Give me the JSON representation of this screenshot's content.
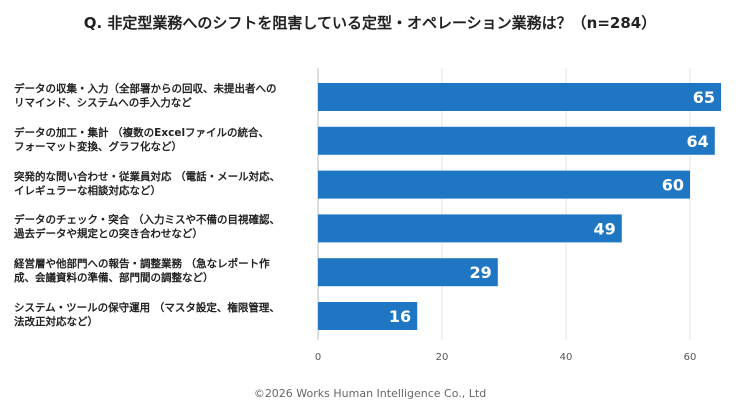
{
  "chart_data": {
    "type": "bar",
    "orientation": "horizontal",
    "title": "Q. 非定型業務へのシフトを阻害している定型・オペレーション業務は？（n=284）",
    "categories": [
      [
        "データの収集・入力（全部署からの回収、未提出者への",
        "リマインド、システムへの手入力など"
      ],
      [
        "データの加工・集計 （複数のExcelファイルの統合、",
        "フォーマット変換、グラフ化など）"
      ],
      [
        "突発的な問い合わせ・従業員対応 （電話・メール対応、",
        "イレギュラーな相談対応など）"
      ],
      [
        "データのチェック・突合 （入力ミスや不備の目視確認、",
        "過去データや規定との突き合わせなど）"
      ],
      [
        "経営層や他部門への報告・調整業務 （急なレポート作",
        "成、会議資料の準備、部門間の調整など）"
      ],
      [
        "システム・ツールの保守運用 （マスタ設定、権限管理、",
        "法改正対応など）"
      ]
    ],
    "values": [
      65,
      64,
      60,
      49,
      29,
      16
    ],
    "xlim": [
      0,
      65
    ],
    "xticks": [
      0,
      20,
      40,
      60
    ],
    "grid": true,
    "bar_color": "#1f77c4"
  },
  "footer": "©2026 Works Human Intelligence Co., Ltd"
}
